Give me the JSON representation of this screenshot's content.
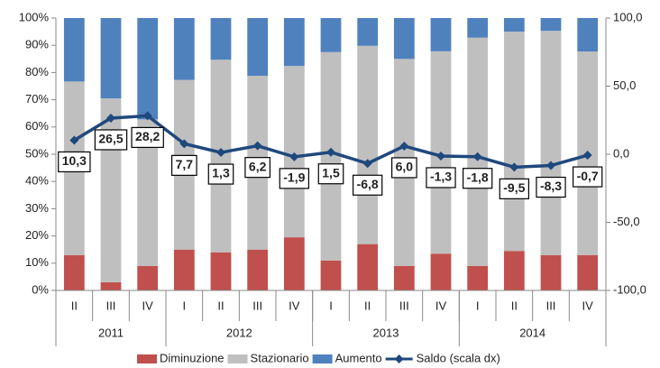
{
  "chart_data": {
    "type": "stacked_bar_line",
    "categories": [
      "II",
      "III",
      "IV",
      "I",
      "II",
      "III",
      "IV",
      "I",
      "II",
      "III",
      "IV",
      "I",
      "II",
      "III",
      "IV"
    ],
    "groups": [
      {
        "name": "2011",
        "count": 3
      },
      {
        "name": "2012",
        "count": 4
      },
      {
        "name": "2013",
        "count": 4
      },
      {
        "name": "2014",
        "count": 4
      }
    ],
    "series": [
      {
        "name": "Diminuzione",
        "color": "#c0504d",
        "values": [
          13,
          3,
          9,
          15,
          14,
          15,
          19.5,
          11,
          17,
          9,
          13.5,
          9,
          14.5,
          13,
          13
        ]
      },
      {
        "name": "Stazionario",
        "color": "#bfbfbf",
        "values": [
          63.7,
          67.5,
          53.8,
          62.3,
          70.7,
          63.8,
          62.9,
          76.5,
          72.8,
          76,
          74.3,
          83.8,
          80.5,
          82.3,
          74.7
        ]
      },
      {
        "name": "Aumento",
        "color": "#4f81bd",
        "values": [
          23.3,
          29.5,
          37.2,
          22.7,
          15.3,
          21.2,
          17.6,
          12.5,
          10.2,
          15,
          12.2,
          7.2,
          5,
          4.7,
          12.3
        ]
      },
      {
        "name": "Saldo (scala dx)",
        "color": "#1f497d",
        "axis": "y2",
        "values": [
          10.3,
          26.5,
          28.2,
          7.7,
          1.3,
          6.2,
          -1.9,
          1.5,
          -6.8,
          6.0,
          -1.3,
          -1.8,
          -9.5,
          -8.3,
          -0.7
        ],
        "value_labels": [
          "10,3",
          "26,5",
          "28,2",
          "7,7",
          "1,3",
          "6,2",
          "-1,9",
          "1,5",
          "-6,8",
          "6,0",
          "-1,3",
          "-1,8",
          "-9,5",
          "-8,3",
          "-0,7"
        ]
      }
    ],
    "ylim": [
      0,
      100
    ],
    "yticks": [
      {
        "value": 0,
        "label": "0%"
      },
      {
        "value": 10,
        "label": "10%"
      },
      {
        "value": 20,
        "label": "20%"
      },
      {
        "value": 30,
        "label": "30%"
      },
      {
        "value": 40,
        "label": "40%"
      },
      {
        "value": 50,
        "label": "50%"
      },
      {
        "value": 60,
        "label": "60%"
      },
      {
        "value": 70,
        "label": "70%"
      },
      {
        "value": 80,
        "label": "80%"
      },
      {
        "value": 90,
        "label": "90%"
      },
      {
        "value": 100,
        "label": "100%"
      }
    ],
    "y2lim": [
      -100,
      100
    ],
    "y2ticks": [
      {
        "value": -100,
        "label": "-100,0"
      },
      {
        "value": -50,
        "label": "-50,0"
      },
      {
        "value": 0,
        "label": "0,0"
      },
      {
        "value": 50,
        "label": "50,0"
      },
      {
        "value": 100,
        "label": "100,0"
      }
    ],
    "grid": false,
    "legend": "bottom"
  }
}
